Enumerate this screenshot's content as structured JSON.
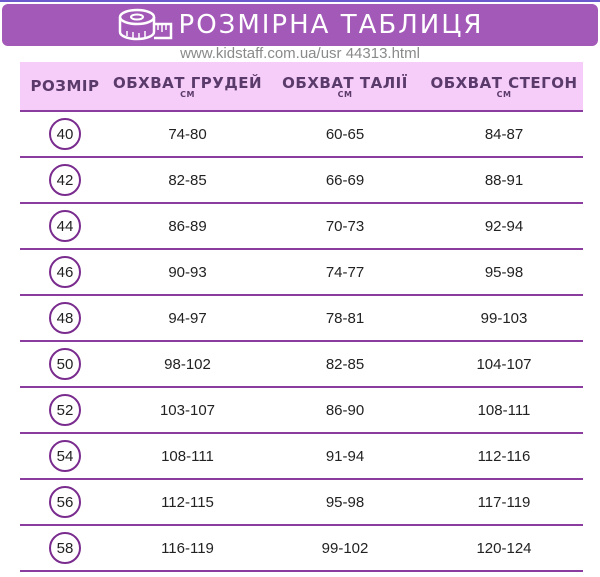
{
  "banner": {
    "title": "РОЗМІРНА ТАБЛИЦЯ",
    "icon": "measuring-tape-icon"
  },
  "headers": [
    {
      "label": "РОЗМІР",
      "unit": ""
    },
    {
      "label": "ОБХВАТ ГРУДЕЙ",
      "unit": "СМ"
    },
    {
      "label": "ОБХВАТ ТАЛІЇ",
      "unit": "СМ"
    },
    {
      "label": "ОБХВАТ СТЕГОН",
      "unit": "СМ"
    }
  ],
  "rows": [
    [
      "40",
      "74-80",
      "60-65",
      "84-87"
    ],
    [
      "42",
      "82-85",
      "66-69",
      "88-91"
    ],
    [
      "44",
      "86-89",
      "70-73",
      "92-94"
    ],
    [
      "46",
      "90-93",
      "74-77",
      "95-98"
    ],
    [
      "48",
      "94-97",
      "78-81",
      "99-103"
    ],
    [
      "50",
      "98-102",
      "82-85",
      "104-107"
    ],
    [
      "52",
      "103-107",
      "86-90",
      "108-111"
    ],
    [
      "54",
      "108-111",
      "91-94",
      "112-116"
    ],
    [
      "56",
      "112-115",
      "95-98",
      "117-119"
    ],
    [
      "58",
      "116-119",
      "99-102",
      "120-124"
    ]
  ],
  "watermark": "www.kidstaff.com.ua/usr 44313.html",
  "colors": {
    "banner": "#a259b7",
    "header_bg": "#f6cdf9",
    "lines": "#8a3d9e"
  }
}
